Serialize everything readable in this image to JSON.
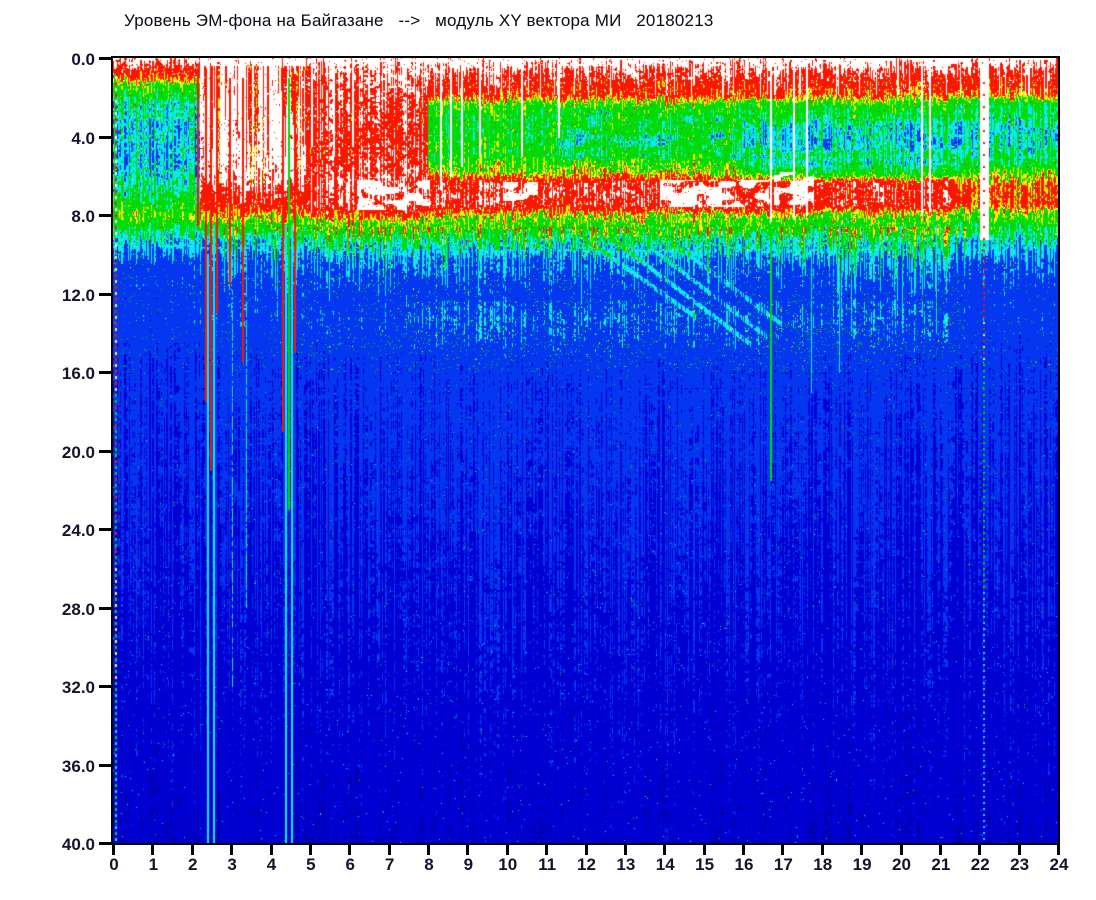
{
  "chart_data": {
    "type": "heatmap",
    "title": "Уровень ЭМ-фона на Байгазане   -->   модуль XY вектора МИ   20180213",
    "x_axis": {
      "min": 0,
      "max": 24,
      "ticks": [
        "0",
        "1",
        "2",
        "3",
        "4",
        "5",
        "6",
        "7",
        "8",
        "9",
        "10",
        "11",
        "12",
        "13",
        "14",
        "15",
        "16",
        "17",
        "18",
        "19",
        "20",
        "21",
        "22",
        "23",
        "24"
      ]
    },
    "y_axis": {
      "min": 0,
      "max": 40,
      "inverted": true,
      "ticks": [
        "0.0",
        "4.0",
        "8.0",
        "12.0",
        "16.0",
        "20.0",
        "24.0",
        "28.0",
        "32.0",
        "36.0",
        "40.0"
      ]
    },
    "colormap_order_low_to_high": [
      "dark blue",
      "blue",
      "bright blue",
      "cyan",
      "green",
      "yellow",
      "red",
      "white"
    ],
    "spectrogram_model": {
      "palette_thresholds": [
        0.15,
        0.27,
        0.42,
        0.52,
        0.7,
        0.77,
        0.955
      ],
      "palette_colors": [
        "#0000A0",
        "#0000D2",
        "#0536F0",
        "#0CE9F2",
        "#00DC05",
        "#F8F400",
        "#F81800",
        "#FFFFFF"
      ],
      "segments": [
        {
          "t": [
            0,
            2.2
          ],
          "profile": [
            [
              0,
              1.02
            ],
            [
              0.5,
              0.93
            ],
            [
              0.9,
              0.82
            ],
            [
              1.5,
              0.66
            ],
            [
              2.3,
              0.52
            ],
            [
              3.4,
              0.46
            ],
            [
              5.2,
              0.45
            ],
            [
              6.6,
              0.52
            ],
            [
              7.4,
              0.6
            ],
            [
              8.0,
              0.68
            ],
            [
              8.5,
              0.6
            ],
            [
              9.1,
              0.5
            ],
            [
              9.8,
              0.42
            ],
            [
              10.6,
              0.37
            ],
            [
              12.2,
              0.345
            ],
            [
              13.6,
              0.35
            ],
            [
              15.5,
              0.305
            ],
            [
              20,
              0.285
            ],
            [
              27,
              0.25
            ],
            [
              34,
              0.215
            ],
            [
              40,
              0.19
            ]
          ]
        },
        {
          "t": [
            2.2,
            4.9
          ],
          "profile": [
            [
              0,
              1.06
            ],
            [
              5.2,
              1.03
            ],
            [
              6.3,
              0.96
            ],
            [
              7.6,
              0.84
            ],
            [
              8.5,
              0.64
            ],
            [
              9.3,
              0.48
            ],
            [
              10.3,
              0.385
            ],
            [
              12.2,
              0.35
            ],
            [
              13.6,
              0.36
            ],
            [
              15.5,
              0.31
            ],
            [
              20,
              0.285
            ],
            [
              27,
              0.25
            ],
            [
              34,
              0.215
            ],
            [
              40,
              0.19
            ]
          ]
        },
        {
          "t": [
            4.9,
            8
          ],
          "profile": [
            [
              0,
              1.06
            ],
            [
              0.6,
              0.98
            ],
            [
              2.3,
              0.91
            ],
            [
              4.9,
              0.89
            ],
            [
              6.1,
              0.94
            ],
            [
              7.5,
              0.93
            ],
            [
              8.1,
              0.78
            ],
            [
              8.7,
              0.64
            ],
            [
              9.4,
              0.5
            ],
            [
              10.3,
              0.4
            ],
            [
              12.2,
              0.35
            ],
            [
              13.6,
              0.365
            ],
            [
              15.5,
              0.315
            ],
            [
              20,
              0.29
            ],
            [
              27,
              0.25
            ],
            [
              34,
              0.215
            ],
            [
              40,
              0.19
            ]
          ]
        },
        {
          "t": [
            8,
            16
          ],
          "profile": [
            [
              0,
              1.06
            ],
            [
              0.55,
              0.96
            ],
            [
              1.0,
              0.9
            ],
            [
              1.9,
              0.82
            ],
            [
              2.4,
              0.64
            ],
            [
              3.0,
              0.59
            ],
            [
              5.0,
              0.6
            ],
            [
              5.8,
              0.7
            ],
            [
              6.4,
              0.9
            ],
            [
              7.5,
              0.91
            ],
            [
              8.0,
              0.72
            ],
            [
              8.7,
              0.62
            ],
            [
              9.3,
              0.5
            ],
            [
              10.3,
              0.4
            ],
            [
              12.2,
              0.35
            ],
            [
              13.4,
              0.37
            ],
            [
              15,
              0.335
            ],
            [
              16.5,
              0.31
            ],
            [
              20,
              0.29
            ],
            [
              27,
              0.25
            ],
            [
              34,
              0.215
            ],
            [
              40,
              0.19
            ]
          ]
        },
        {
          "t": [
            16,
            21.5
          ],
          "profile": [
            [
              0,
              1.06
            ],
            [
              0.55,
              0.96
            ],
            [
              1.0,
              0.9
            ],
            [
              1.9,
              0.8
            ],
            [
              2.4,
              0.62
            ],
            [
              3.0,
              0.57
            ],
            [
              3.6,
              0.47
            ],
            [
              4.5,
              0.46
            ],
            [
              4.9,
              0.55
            ],
            [
              5.3,
              0.5
            ],
            [
              5.9,
              0.62
            ],
            [
              6.4,
              0.89
            ],
            [
              7.5,
              0.9
            ],
            [
              8.0,
              0.7
            ],
            [
              8.7,
              0.6
            ],
            [
              9.3,
              0.49
            ],
            [
              10.3,
              0.4
            ],
            [
              12.2,
              0.35
            ],
            [
              13.4,
              0.365
            ],
            [
              15,
              0.33
            ],
            [
              16.5,
              0.31
            ],
            [
              20,
              0.29
            ],
            [
              27,
              0.25
            ],
            [
              34,
              0.215
            ],
            [
              40,
              0.19
            ]
          ]
        },
        {
          "t": [
            21.5,
            24.01
          ],
          "profile": [
            [
              0,
              1.05
            ],
            [
              0.55,
              0.94
            ],
            [
              1.0,
              0.88
            ],
            [
              1.9,
              0.77
            ],
            [
              2.4,
              0.59
            ],
            [
              3.0,
              0.55
            ],
            [
              3.7,
              0.48
            ],
            [
              4.6,
              0.51
            ],
            [
              5.3,
              0.56
            ],
            [
              6.0,
              0.7
            ],
            [
              6.5,
              0.81
            ],
            [
              7.4,
              0.82
            ],
            [
              8.0,
              0.68
            ],
            [
              8.7,
              0.59
            ],
            [
              9.3,
              0.48
            ],
            [
              10.3,
              0.395
            ],
            [
              12.2,
              0.345
            ],
            [
              13.4,
              0.355
            ],
            [
              15,
              0.325
            ],
            [
              16.5,
              0.305
            ],
            [
              20,
              0.285
            ],
            [
              27,
              0.25
            ],
            [
              34,
              0.215
            ],
            [
              40,
              0.19
            ]
          ]
        }
      ],
      "noise": {
        "amp_fine": 0.15,
        "amp_coarse": 0.09,
        "deep_factor": 0.45,
        "deep_threshold": 0.45,
        "column_amp": 0.05
      },
      "salt": {
        "base_p": 0.012,
        "colored_p": 0.018,
        "drizzle_p": 0.028,
        "band_p": 0.045,
        "deep_p": 0.004,
        "amp": 0.2,
        "amp_rand": 0.15
      },
      "cyan_band": {
        "t": [
          7.5,
          21.5
        ],
        "f": [
          12.4,
          15.0
        ],
        "boost": 0.02
      },
      "cyan_patches": {
        "t": [
          11.3,
          16.2
        ],
        "f": [
          2.6,
          5.2
        ],
        "delta": -0.13
      },
      "white_patches": [
        {
          "t": [
            6.2,
            8.05
          ],
          "f": [
            6.2,
            7.75
          ]
        },
        {
          "t": [
            13.9,
            16.65
          ],
          "f": [
            6.2,
            7.6
          ]
        },
        {
          "t": [
            16.8,
            17.8
          ],
          "f": [
            5.8,
            7.5
          ]
        },
        {
          "t": [
            9.9,
            10.8
          ],
          "f": [
            6.3,
            7.3
          ]
        }
      ],
      "drizzle": [
        {
          "t": [
            0,
            2.2
          ],
          "p": 0.06,
          "dmax": 11
        },
        {
          "t": [
            2.2,
            4.9
          ],
          "p": 0.3,
          "dmax": 15
        },
        {
          "t": [
            4.9,
            8
          ],
          "p": 0.34,
          "dmax": 14
        },
        {
          "t": [
            8,
            16
          ],
          "p": 0.26,
          "dmax": 13
        },
        {
          "t": [
            16,
            17.5
          ],
          "p": 0.22,
          "dmax": 13
        },
        {
          "t": [
            17.5,
            21.3
          ],
          "p": 0.5,
          "dmax": 14.5
        },
        {
          "t": [
            21.3,
            24.01
          ],
          "p": 0.16,
          "dmax": 12
        }
      ],
      "top_spikes": {
        "t": [
          2.25,
          4.9
        ],
        "p": 0.38,
        "fmin": 0.4,
        "dmin": 1.5,
        "dmax": 6.5,
        "delta": -0.2
      },
      "top_gaps": {
        "t": [
          7.5,
          24.01
        ],
        "p": 0.085,
        "f": [
          0.3,
          1.9
        ]
      },
      "streaks": [
        {
          "t": 0.04,
          "f": [
            0.8,
            8.6
          ],
          "i": 0.58,
          "w": 2
        },
        {
          "t": 2.17,
          "f": [
            0.5,
            8.5
          ],
          "i": 0.86,
          "w": 2
        },
        {
          "t": 2.36,
          "f": [
            0.5,
            17.5
          ],
          "i": 0.87,
          "w": 2
        },
        {
          "t": 2.42,
          "f": [
            10,
            40
          ],
          "i": 0.47,
          "w": 2
        },
        {
          "t": 2.5,
          "f": [
            0.5,
            21
          ],
          "i": 0.87,
          "w": 2
        },
        {
          "t": 2.56,
          "f": [
            8.5,
            40
          ],
          "i": 0.47,
          "w": 2
        },
        {
          "t": 2.63,
          "f": [
            1,
            13
          ],
          "i": 0.86,
          "w": 2
        },
        {
          "t": 2.96,
          "f": [
            1,
            11.5
          ],
          "i": 0.86,
          "w": 2
        },
        {
          "t": 3.03,
          "f": [
            8.5,
            32
          ],
          "i": 0.44,
          "w": 1
        },
        {
          "t": 3.3,
          "f": [
            1,
            15.5
          ],
          "i": 0.86,
          "w": 2
        },
        {
          "t": 3.37,
          "f": [
            9,
            28
          ],
          "i": 0.44,
          "w": 1
        },
        {
          "t": 4.33,
          "f": [
            0.5,
            19
          ],
          "i": 0.87,
          "w": 2
        },
        {
          "t": 4.4,
          "f": [
            8.5,
            40
          ],
          "i": 0.47,
          "w": 2
        },
        {
          "t": 4.47,
          "f": [
            1,
            23
          ],
          "i": 0.6,
          "w": 2
        },
        {
          "t": 4.55,
          "f": [
            8.5,
            40
          ],
          "i": 0.47,
          "w": 2
        },
        {
          "t": 4.63,
          "f": [
            0.8,
            15
          ],
          "i": 0.86,
          "w": 2
        },
        {
          "t": 16.7,
          "f": [
            8.5,
            21.5
          ],
          "i": 0.58,
          "w": 2
        },
        {
          "t": 17.72,
          "f": [
            8.5,
            17
          ],
          "i": 0.49,
          "w": 1
        },
        {
          "t": 18.45,
          "f": [
            8.5,
            16
          ],
          "i": 0.49,
          "w": 1
        },
        {
          "t": 20.9,
          "f": [
            8.5,
            14
          ],
          "i": 0.49,
          "w": 1
        }
      ],
      "gaps": [
        {
          "t": 5.05,
          "f": [
            0.3,
            4.5
          ],
          "w": 2
        },
        {
          "t": 5.62,
          "f": [
            0.3,
            5.0
          ],
          "w": 2
        },
        {
          "t": 6.1,
          "f": [
            0.3,
            4.5
          ],
          "w": 2
        },
        {
          "t": 8.32,
          "f": [
            0.3,
            6.5
          ],
          "w": 2
        },
        {
          "t": 8.58,
          "f": [
            0.3,
            6.0
          ],
          "w": 2
        },
        {
          "t": 8.86,
          "f": [
            0.3,
            5.5
          ],
          "w": 2
        },
        {
          "t": 9.33,
          "f": [
            0.3,
            5.0
          ],
          "w": 2
        },
        {
          "t": 10.38,
          "f": [
            0.3,
            5.0
          ],
          "w": 2
        },
        {
          "t": 11.32,
          "f": [
            0.3,
            4.0
          ],
          "w": 2
        },
        {
          "t": 16.72,
          "f": [
            0.3,
            8.3
          ],
          "w": 2
        },
        {
          "t": 17.3,
          "f": [
            0.3,
            8.2
          ],
          "w": 2
        },
        {
          "t": 17.62,
          "f": [
            0.3,
            8.0
          ],
          "w": 2
        },
        {
          "t": 20.55,
          "f": [
            0.3,
            8.0
          ],
          "w": 2
        },
        {
          "t": 20.75,
          "f": [
            0.3,
            7.8
          ],
          "w": 2
        },
        {
          "t": 22.12,
          "f": [
            0.3,
            9.2
          ],
          "w": 9
        }
      ],
      "diagonals": [
        {
          "t0": 11.7,
          "f0": 8.8,
          "t1": 14.8,
          "f1": 13.2,
          "delta": 0.07
        },
        {
          "t0": 12.4,
          "f0": 8.8,
          "t1": 16.2,
          "f1": 14.6,
          "delta": 0.08
        },
        {
          "t0": 13.1,
          "f0": 8.8,
          "t1": 16.6,
          "f1": 14.2,
          "delta": 0.07
        },
        {
          "t0": 13.8,
          "f0": 8.8,
          "t1": 17.0,
          "f1": 13.6,
          "delta": 0.06
        }
      ],
      "dashed_line": {
        "t": 0.08,
        "w": 2,
        "fmin": 0.2,
        "dash_on": 3,
        "dash_period": 6,
        "stops": [
          {
            "fmax": 10,
            "colors": [
              "#F81800",
              "#FFFFFF"
            ]
          },
          {
            "fmax": 17,
            "colors": [
              "#F81800",
              "#F8F400"
            ]
          },
          {
            "fmax": 26,
            "colors": [
              "#00DC05",
              "#F81800",
              "#00DC05"
            ]
          },
          {
            "fmax": 32,
            "colors": [
              "#00DC05",
              "#F8F400"
            ]
          },
          {
            "fmax": 41,
            "colors": [
              "#0CE9F2",
              "#00DC05"
            ]
          }
        ]
      },
      "dotted_line": {
        "t": 22.12,
        "w": 2,
        "fmin": 0.8,
        "dash_on": 2,
        "dash_period": 6,
        "stops": [
          {
            "fmax": 9,
            "colors": [
              "#F81800",
              "#FFFFFF"
            ]
          },
          {
            "fmax": 13,
            "colors": [
              "#F81800"
            ]
          },
          {
            "fmax": 15.5,
            "colors": [
              "#F8F400",
              "#F81800"
            ]
          },
          {
            "fmax": 27,
            "colors": [
              "#00DC05"
            ]
          },
          {
            "fmax": 41,
            "colors": [
              "#0CE9F2"
            ]
          }
        ]
      },
      "hband": {
        "period": 15,
        "delta": 0.013,
        "imax": 0.42
      }
    }
  }
}
